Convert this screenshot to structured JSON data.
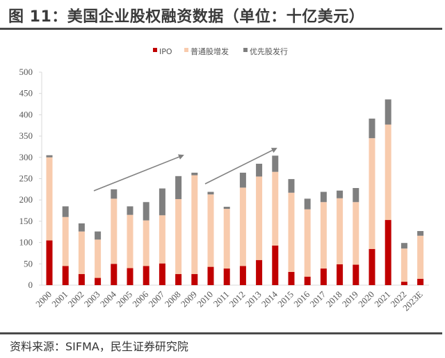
{
  "title": "图 11：美国企业股权融资数据（单位：十亿美元）",
  "source": "资料来源：SIFMA，民生证券研究院",
  "colors": {
    "ipo": "#c00000",
    "common": "#f8cbad",
    "preferred": "#7f7f7f",
    "arrow": "#808080"
  },
  "chart_data": {
    "type": "bar",
    "stacked": true,
    "title": "",
    "xlabel": "",
    "ylabel": "",
    "ylim": [
      0,
      500
    ],
    "yticks": [
      0,
      50,
      100,
      150,
      200,
      250,
      300,
      350,
      400,
      450,
      500
    ],
    "grid": false,
    "legend_position": "top",
    "categories": [
      "2000",
      "2001",
      "2002",
      "2003",
      "2004",
      "2005",
      "2006",
      "2007",
      "2008",
      "2009",
      "2010",
      "2011",
      "2012",
      "2013",
      "2014",
      "2015",
      "2016",
      "2017",
      "2018",
      "2019",
      "2020",
      "2021",
      "2022",
      "2023E"
    ],
    "series": [
      {
        "name": "IPO",
        "values": [
          105,
          45,
          26,
          17,
          50,
          40,
          45,
          51,
          26,
          26,
          43,
          39,
          45,
          59,
          93,
          31,
          20,
          39,
          49,
          48,
          85,
          153,
          8,
          15
        ]
      },
      {
        "name": "普通股增发",
        "values": [
          195,
          115,
          100,
          90,
          153,
          125,
          107,
          113,
          176,
          232,
          170,
          140,
          184,
          196,
          173,
          186,
          158,
          156,
          155,
          147,
          260,
          224,
          78,
          101
        ]
      },
      {
        "name": "优先股发行",
        "values": [
          5,
          25,
          19,
          19,
          22,
          20,
          43,
          63,
          54,
          6,
          6,
          5,
          35,
          30,
          38,
          32,
          25,
          24,
          18,
          33,
          46,
          59,
          13,
          11
        ]
      }
    ],
    "annotations": [
      {
        "type": "trend-arrow",
        "from_category": "2003",
        "to_category": "2008"
      },
      {
        "type": "trend-arrow",
        "from_category": "2010",
        "to_category": "2014"
      }
    ]
  }
}
